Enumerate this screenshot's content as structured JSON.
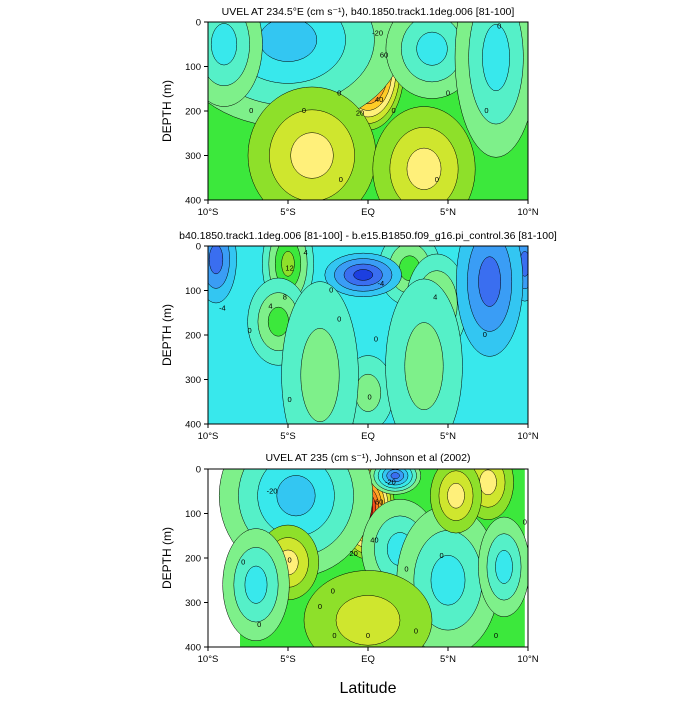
{
  "figure": {
    "xlabel": "Latitude",
    "x_ticks": [
      "10°S",
      "5°S",
      "EQ",
      "5°N",
      "10°N"
    ],
    "y_ticks": [
      "0",
      "100",
      "200",
      "300",
      "400"
    ]
  },
  "colors": {
    "palette": [
      "#0000cc",
      "#1c3fe0",
      "#3a6ef0",
      "#3a9df5",
      "#33c6f2",
      "#38e8ec",
      "#55f0c8",
      "#7ef08a",
      "#3ce83c",
      "#8ee02a",
      "#cfe62e",
      "#fff07a",
      "#ffcc26",
      "#ffa626",
      "#ff7d1e",
      "#f04a1a",
      "#d21414",
      "#a8060c"
    ]
  },
  "chart_data": [
    {
      "type": "heatmap",
      "title": "UVEL AT 234.5°E (cm s⁻¹), b40.1850.track1.1deg.006 [81-100]",
      "xlabel": "",
      "ylabel": "DEPTH (m)",
      "xlim": [
        -10,
        10
      ],
      "ylim": [
        400,
        0
      ],
      "background_level": "green",
      "blobs": [
        {
          "lat": 0.0,
          "depth": 110,
          "dlat": 1.4,
          "ddepth": 95,
          "amp": 70
        },
        {
          "lat": 0.4,
          "depth": 10,
          "dlat": 1.2,
          "ddepth": 30,
          "amp": -30
        },
        {
          "lat": -5.0,
          "depth": 40,
          "dlat": 4.5,
          "ddepth": 140,
          "amp": -12
        },
        {
          "lat": 4.0,
          "depth": 60,
          "dlat": 1.8,
          "ddepth": 80,
          "amp": -8
        },
        {
          "lat": 8.0,
          "depth": 80,
          "dlat": 1.6,
          "ddepth": 160,
          "amp": -6
        },
        {
          "lat": -9.0,
          "depth": 50,
          "dlat": 1.5,
          "ddepth": 100,
          "amp": -6
        },
        {
          "lat": -3.5,
          "depth": 300,
          "dlat": 2.5,
          "ddepth": 110,
          "amp": 6
        },
        {
          "lat": 3.5,
          "depth": 330,
          "dlat": 2.0,
          "ddepth": 100,
          "amp": 5
        }
      ],
      "contour_labels": [
        {
          "lat": 0.6,
          "depth": 30,
          "text": "-20"
        },
        {
          "lat": 1.0,
          "depth": 80,
          "text": "60"
        },
        {
          "lat": 0.7,
          "depth": 180,
          "text": "40"
        },
        {
          "lat": -0.5,
          "depth": 210,
          "text": "20"
        },
        {
          "lat": -7.3,
          "depth": 205,
          "text": "0"
        },
        {
          "lat": -4.0,
          "depth": 205,
          "text": "0"
        },
        {
          "lat": 1.6,
          "depth": 205,
          "text": "0"
        },
        {
          "lat": 5.0,
          "depth": 165,
          "text": "0"
        },
        {
          "lat": 7.4,
          "depth": 205,
          "text": "0"
        },
        {
          "lat": 8.2,
          "depth": 15,
          "text": "0"
        },
        {
          "lat": -1.8,
          "depth": 165,
          "text": "0"
        },
        {
          "lat": -1.7,
          "depth": 360,
          "text": "0"
        },
        {
          "lat": 4.3,
          "depth": 360,
          "text": "0"
        }
      ]
    },
    {
      "type": "heatmap",
      "title": "b40.1850.track1.1deg.006 [81-100] - b.e15.B1850.f09_g16.pi_control.36 [81-100]",
      "xlabel": "",
      "ylabel": "DEPTH (m)",
      "xlim": [
        -10,
        10
      ],
      "ylim": [
        400,
        0
      ],
      "background_level": "cyan",
      "blobs": [
        {
          "lat": -5.0,
          "depth": 40,
          "dlat": 1.0,
          "ddepth": 80,
          "amp": 16
        },
        {
          "lat": -5.6,
          "depth": 170,
          "dlat": 1.2,
          "ddepth": 70,
          "amp": 5
        },
        {
          "lat": 2.6,
          "depth": 50,
          "dlat": 1.2,
          "ddepth": 60,
          "amp": 10
        },
        {
          "lat": 4.3,
          "depth": 130,
          "dlat": 1.2,
          "ddepth": 80,
          "amp": 5
        },
        {
          "lat": -0.3,
          "depth": 65,
          "dlat": 1.5,
          "ddepth": 35,
          "amp": -12
        },
        {
          "lat": -9.5,
          "depth": 30,
          "dlat": 0.8,
          "ddepth": 70,
          "amp": -5
        },
        {
          "lat": 9.8,
          "depth": 40,
          "dlat": 0.6,
          "ddepth": 60,
          "amp": -7
        },
        {
          "lat": 7.6,
          "depth": 80,
          "dlat": 1.3,
          "ddepth": 120,
          "amp": -4
        },
        {
          "lat": 0.0,
          "depth": 330,
          "dlat": 1.0,
          "ddepth": 60,
          "amp": 3
        },
        {
          "lat": -3.0,
          "depth": 290,
          "dlat": 1.5,
          "ddepth": 150,
          "amp": 3
        },
        {
          "lat": 3.5,
          "depth": 270,
          "dlat": 1.5,
          "ddepth": 140,
          "amp": 3
        }
      ],
      "contour_labels": [
        {
          "lat": -4.9,
          "depth": 55,
          "text": "12"
        },
        {
          "lat": -5.2,
          "depth": 120,
          "text": "8"
        },
        {
          "lat": -6.1,
          "depth": 140,
          "text": "4"
        },
        {
          "lat": -9.1,
          "depth": 145,
          "text": "-4"
        },
        {
          "lat": -7.4,
          "depth": 195,
          "text": "0"
        },
        {
          "lat": -3.9,
          "depth": 20,
          "text": "4"
        },
        {
          "lat": -2.3,
          "depth": 105,
          "text": "0"
        },
        {
          "lat": 0.8,
          "depth": 90,
          "text": "-4"
        },
        {
          "lat": 4.2,
          "depth": 120,
          "text": "4"
        },
        {
          "lat": 0.5,
          "depth": 215,
          "text": "0"
        },
        {
          "lat": 7.3,
          "depth": 205,
          "text": "0"
        },
        {
          "lat": -1.8,
          "depth": 170,
          "text": "0"
        },
        {
          "lat": 0.1,
          "depth": 345,
          "text": "0"
        },
        {
          "lat": -4.9,
          "depth": 350,
          "text": "0"
        }
      ]
    },
    {
      "type": "heatmap",
      "title": "UVEL AT 235 (cm s⁻¹), Johnson et al (2002)",
      "xlabel": "Latitude",
      "ylabel": "DEPTH (m)",
      "xlim": [
        -10,
        10
      ],
      "ylim": [
        400,
        0
      ],
      "background_level": "green",
      "data_extent_lat": [
        -8.0,
        9.8
      ],
      "blobs": [
        {
          "lat": -0.1,
          "depth": 90,
          "dlat": 1.1,
          "ddepth": 80,
          "amp": 75
        },
        {
          "lat": 1.7,
          "depth": 15,
          "dlat": 1.0,
          "ddepth": 30,
          "amp": -34
        },
        {
          "lat": -4.5,
          "depth": 60,
          "dlat": 3.0,
          "ddepth": 130,
          "amp": -14
        },
        {
          "lat": 2.0,
          "depth": 180,
          "dlat": 1.5,
          "ddepth": 80,
          "amp": -8
        },
        {
          "lat": 5.0,
          "depth": 250,
          "dlat": 2.0,
          "ddepth": 120,
          "amp": -6
        },
        {
          "lat": 7.5,
          "depth": 30,
          "dlat": 1.0,
          "ddepth": 60,
          "amp": 9
        },
        {
          "lat": 5.5,
          "depth": 60,
          "dlat": 1.0,
          "ddepth": 60,
          "amp": 5
        },
        {
          "lat": -5.0,
          "depth": 210,
          "dlat": 1.2,
          "ddepth": 60,
          "amp": 6
        },
        {
          "lat": -7.0,
          "depth": 260,
          "dlat": 1.3,
          "ddepth": 90,
          "amp": -6
        },
        {
          "lat": 8.5,
          "depth": 220,
          "dlat": 1.0,
          "ddepth": 80,
          "amp": -5
        },
        {
          "lat": 0.0,
          "depth": 340,
          "dlat": 2.5,
          "ddepth": 80,
          "amp": 3
        }
      ],
      "contour_labels": [
        {
          "lat": 1.4,
          "depth": 35,
          "text": "-20"
        },
        {
          "lat": 0.7,
          "depth": 80,
          "text": "60"
        },
        {
          "lat": 0.4,
          "depth": 165,
          "text": "40"
        },
        {
          "lat": -0.9,
          "depth": 195,
          "text": "20"
        },
        {
          "lat": -6.0,
          "depth": 55,
          "text": "-20"
        },
        {
          "lat": -7.8,
          "depth": 215,
          "text": "0"
        },
        {
          "lat": -4.9,
          "depth": 210,
          "text": "0"
        },
        {
          "lat": 2.4,
          "depth": 230,
          "text": "0"
        },
        {
          "lat": 4.6,
          "depth": 200,
          "text": "0"
        },
        {
          "lat": 9.8,
          "depth": 125,
          "text": "0"
        },
        {
          "lat": -2.2,
          "depth": 280,
          "text": "0"
        },
        {
          "lat": -3.0,
          "depth": 315,
          "text": "0"
        },
        {
          "lat": -6.8,
          "depth": 355,
          "text": "0"
        },
        {
          "lat": -2.1,
          "depth": 380,
          "text": "0"
        },
        {
          "lat": 0.0,
          "depth": 380,
          "text": "0"
        },
        {
          "lat": 3.0,
          "depth": 370,
          "text": "0"
        },
        {
          "lat": 8.0,
          "depth": 380,
          "text": "0"
        }
      ]
    }
  ]
}
